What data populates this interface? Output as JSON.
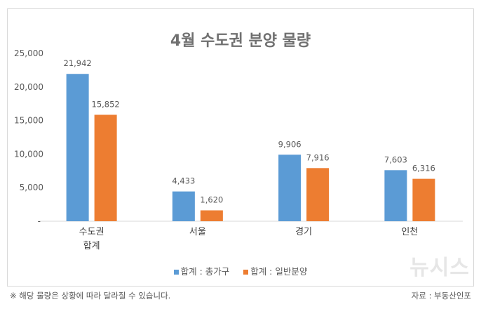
{
  "chart_data": {
    "type": "bar",
    "title": "4월 수도권 분양 물량",
    "categories": [
      [
        "수도권",
        "합계"
      ],
      [
        "서울"
      ],
      [
        "경기"
      ],
      [
        "인천"
      ]
    ],
    "series": [
      {
        "name": "합계 : 총가구",
        "color": "#5b9bd5",
        "values": [
          21942,
          4433,
          9906,
          7603
        ],
        "labels": [
          "21,942",
          "4,433",
          "9,906",
          "7,603"
        ]
      },
      {
        "name": "합계 : 일반분양",
        "color": "#ed7d31",
        "values": [
          15852,
          1620,
          7916,
          6316
        ],
        "labels": [
          "15,852",
          "1,620",
          "7,916",
          "6,316"
        ]
      }
    ],
    "ylim": [
      0,
      25000
    ],
    "yticks": [
      0,
      5000,
      10000,
      15000,
      20000,
      25000
    ],
    "ytick_labels": [
      "-",
      "5,000",
      "10,000",
      "15,000",
      "20,000",
      "25,000"
    ],
    "grid": false,
    "legend": "bottom"
  },
  "footer": {
    "note": "※ 해당 물량은 상황에 따라 달라질 수 있습니다.",
    "source": "자료 : 부동산인포",
    "watermark": "뉴시스"
  }
}
